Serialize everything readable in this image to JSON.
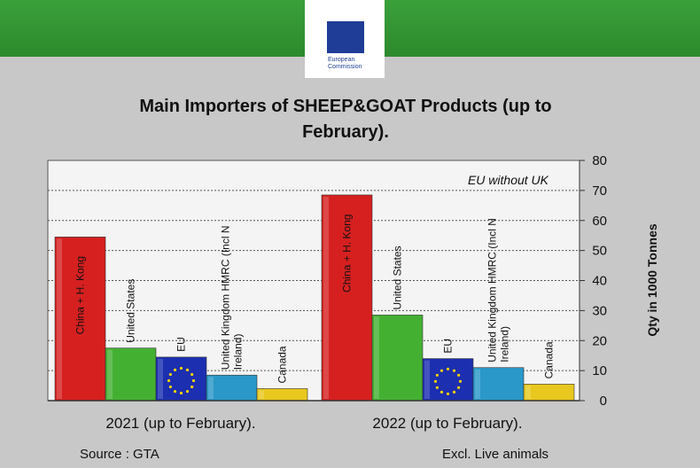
{
  "header": {
    "logo_text_line1": "European",
    "logo_text_line2": "Commission"
  },
  "chart_data": {
    "type": "bar",
    "title_line1": "Main Importers of SHEEP&GOAT Products (up to",
    "title_line2": "February).",
    "categories": [
      "2021 (up to February).",
      "2022 (up to February)."
    ],
    "series": [
      {
        "name": "China + H. Kong",
        "values": [
          54.5,
          68.5
        ],
        "color": "#d62020"
      },
      {
        "name": "United States",
        "values": [
          17.5,
          28.5
        ],
        "color": "#44b032"
      },
      {
        "name": "EU",
        "values": [
          14.5,
          14
        ],
        "color": "#1c2fb0"
      },
      {
        "name": "United Kingdom HMRC (Incl N Ireland)",
        "values": [
          8.5,
          11
        ],
        "color": "#2a98c8"
      },
      {
        "name": "Canada",
        "values": [
          4,
          5.5
        ],
        "color": "#e8c81e"
      }
    ],
    "ylabel": "Qty in 1000 Tonnes",
    "ylim": [
      0,
      80
    ],
    "yticks": [
      0,
      10,
      20,
      30,
      40,
      50,
      60,
      70,
      80
    ],
    "annotation": "EU without UK",
    "grid": true
  },
  "footer": {
    "source": "Source : GTA",
    "note": "Excl. Live animals"
  }
}
